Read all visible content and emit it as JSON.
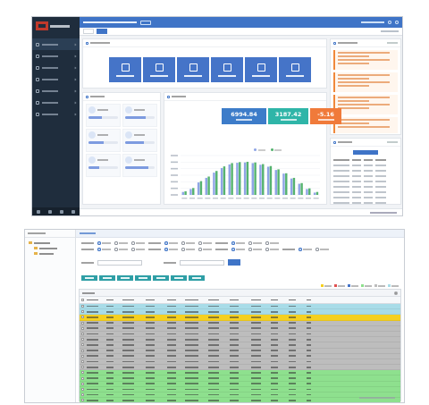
{
  "dashboard": {
    "kpis": [
      {
        "value": "6994.84",
        "color": "#3d7cc9"
      },
      {
        "value": "3187.42",
        "color": "#2fb5a8"
      },
      {
        "value": "-5.16",
        "color": "#f07a3a"
      }
    ],
    "progress": [
      0.45,
      0.7,
      0.5,
      0.65,
      0.35,
      0.8
    ],
    "chart_data": {
      "type": "bar",
      "series": [
        {
          "color": "#8fa5e6",
          "values": [
            0.9,
            1.8,
            3.8,
            5.2,
            6.8,
            8.2,
            9.3,
            9.8,
            9.9,
            9.7,
            9.2,
            8.6,
            7.6,
            6.5,
            5.0,
            3.4,
            1.8,
            0.7
          ]
        },
        {
          "color": "#55b36f",
          "values": [
            1.1,
            2.1,
            4.2,
            5.6,
            7.3,
            8.7,
            9.7,
            10.0,
            10.1,
            9.9,
            9.4,
            8.8,
            7.8,
            6.6,
            5.2,
            3.6,
            2.0,
            0.9
          ]
        }
      ]
    }
  },
  "query": {
    "row_colors": [
      "#a8dce8",
      "#a8dce8",
      "#f5d020",
      "#bdbdbd",
      "#bdbdbd",
      "#bdbdbd",
      "#bdbdbd",
      "#bdbdbd",
      "#bdbdbd",
      "#bdbdbd",
      "#bdbdbd",
      "#bdbdbd",
      "#8ee08e",
      "#8ee08e",
      "#8ee08e",
      "#8ee08e",
      "#8ee08e",
      "#8ee08e"
    ],
    "legend_colors": [
      "#f5d020",
      "#e05050",
      "#4574c8",
      "#8ee08e",
      "#bdbdbd",
      "#a8dce8"
    ]
  }
}
